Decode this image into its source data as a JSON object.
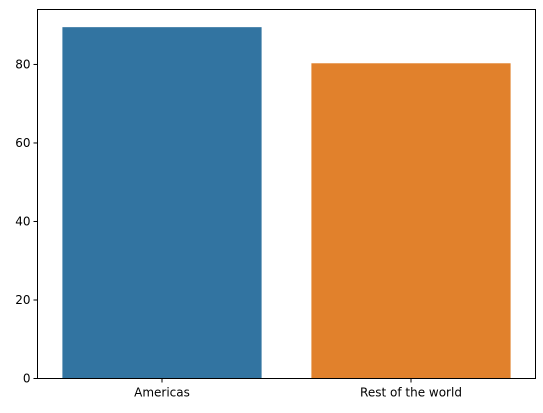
{
  "chart_data": {
    "type": "bar",
    "title": "",
    "xlabel": "",
    "ylabel": "",
    "categories": [
      "Americas",
      "Rest of the world"
    ],
    "values": [
      89.5,
      80.3
    ],
    "colors": [
      "#3274a1",
      "#e1812c"
    ],
    "ylim": [
      0,
      94
    ],
    "yticks": [
      0,
      20,
      40,
      60,
      80
    ],
    "ytick_labels": [
      "0",
      "20",
      "40",
      "60",
      "80"
    ],
    "grid": false,
    "legend": "none"
  }
}
